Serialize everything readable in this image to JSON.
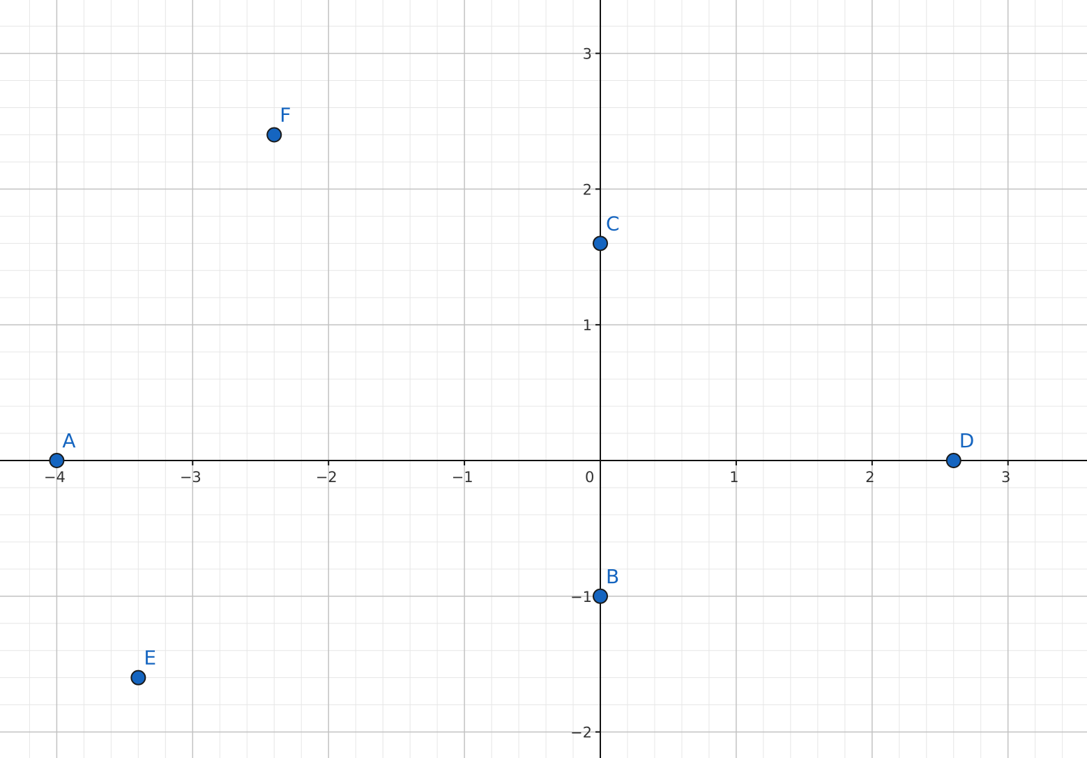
{
  "chart_data": {
    "type": "scatter",
    "xlim": [
      -4.2,
      3.5
    ],
    "ylim": [
      -2.2,
      3.4
    ],
    "grid": true,
    "minor_grid_step": 0.2,
    "x_ticks": [
      -4,
      -3,
      -2,
      -1,
      0,
      1,
      2,
      3
    ],
    "x_tick_labels": [
      "−4",
      "−3",
      "−2",
      "−1",
      "0",
      "1",
      "2",
      "3"
    ],
    "y_ticks": [
      -2,
      -1,
      1,
      2,
      3
    ],
    "y_tick_labels": [
      "−2",
      "−1",
      "1",
      "2",
      "3"
    ],
    "points": [
      {
        "label": "A",
        "x": -4,
        "y": 0
      },
      {
        "label": "B",
        "x": 0,
        "y": -1
      },
      {
        "label": "C",
        "x": 0,
        "y": 1.6
      },
      {
        "label": "D",
        "x": 2.6,
        "y": 0
      },
      {
        "label": "E",
        "x": -3.4,
        "y": -1.6
      },
      {
        "label": "F",
        "x": -2.4,
        "y": 2.4
      }
    ],
    "colors": {
      "point_fill": "#1565c0",
      "point_stroke": "#1a1a1a",
      "label": "#1565c0",
      "major_grid": "#c2c2c2",
      "minor_grid": "#e6e6e6",
      "axis": "#111111"
    }
  }
}
